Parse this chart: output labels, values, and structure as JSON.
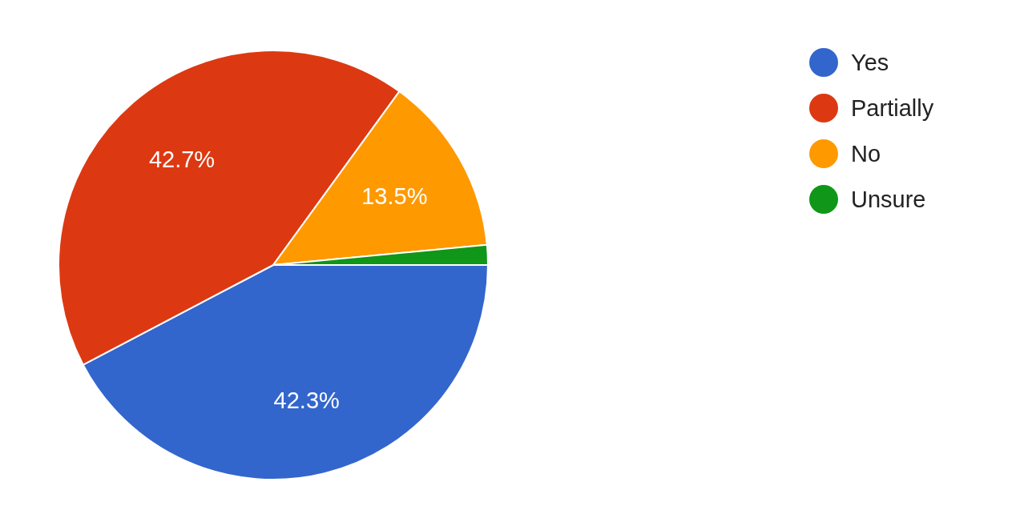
{
  "chart_data": {
    "type": "pie",
    "categories": [
      "Yes",
      "Partially",
      "No",
      "Unsure"
    ],
    "values": [
      42.3,
      42.7,
      13.5,
      1.5
    ],
    "colors": [
      "#3366cc",
      "#dc3912",
      "#ff9900",
      "#109618"
    ],
    "value_labels": [
      "42.3%",
      "42.7%",
      "13.5%",
      null
    ],
    "legend": "top right"
  }
}
